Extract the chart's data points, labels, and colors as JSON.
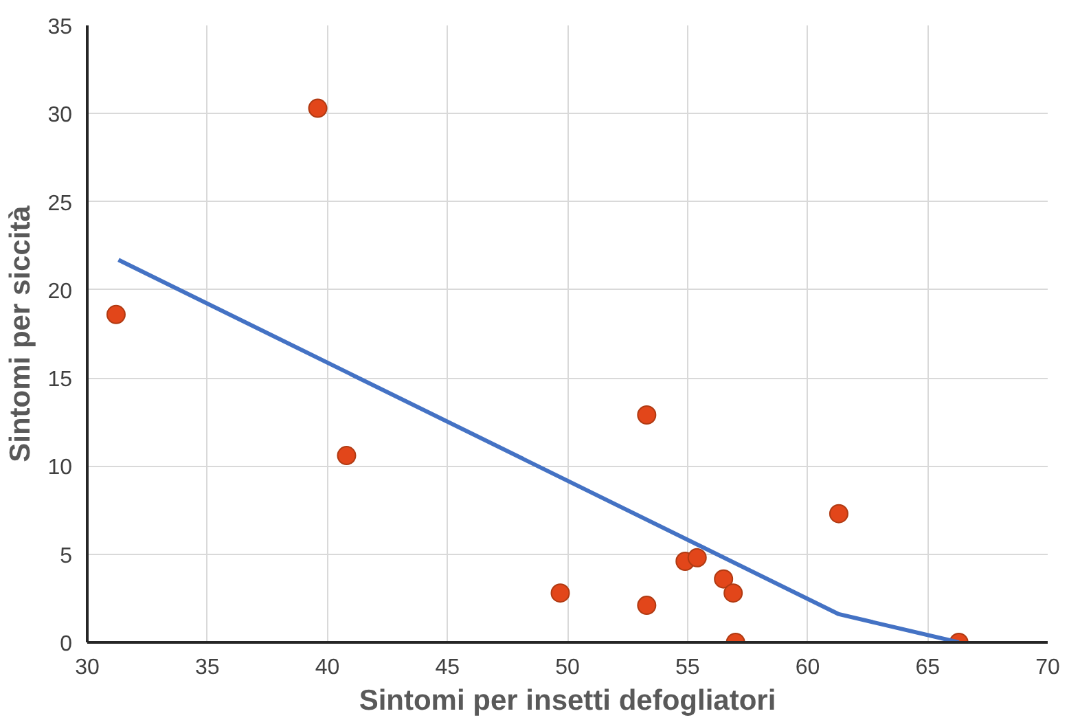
{
  "chart_data": {
    "type": "scatter",
    "xlabel": "Sintomi per insetti defogliatori",
    "ylabel": "Sintomi per siccità",
    "xlim": [
      30,
      70
    ],
    "xticks": [
      30,
      35,
      40,
      45,
      50,
      55,
      60,
      65,
      70
    ],
    "ylim": [
      0,
      35
    ],
    "yticks": [
      0,
      5,
      10,
      15,
      20,
      25,
      30,
      35
    ],
    "grid": true,
    "marker": "circle",
    "series": [
      {
        "color": "#e2461a",
        "x": [
          31.2,
          39.6,
          40.8,
          49.7,
          53.3,
          61.3,
          54.9,
          55.4,
          56.5,
          56.9,
          53.3,
          57.0,
          66.3
        ],
        "values": [
          18.6,
          30.3,
          10.6,
          2.8,
          12.9,
          7.3,
          4.6,
          4.8,
          3.6,
          2.8,
          2.1,
          0,
          0
        ]
      },
      {
        "type": "line",
        "color": "#4472c4",
        "x": [
          31.3,
          61.3,
          66.3
        ],
        "values": [
          21.7,
          1.6,
          0
        ],
        "line_style": "solid",
        "marker": "none"
      }
    ]
  }
}
